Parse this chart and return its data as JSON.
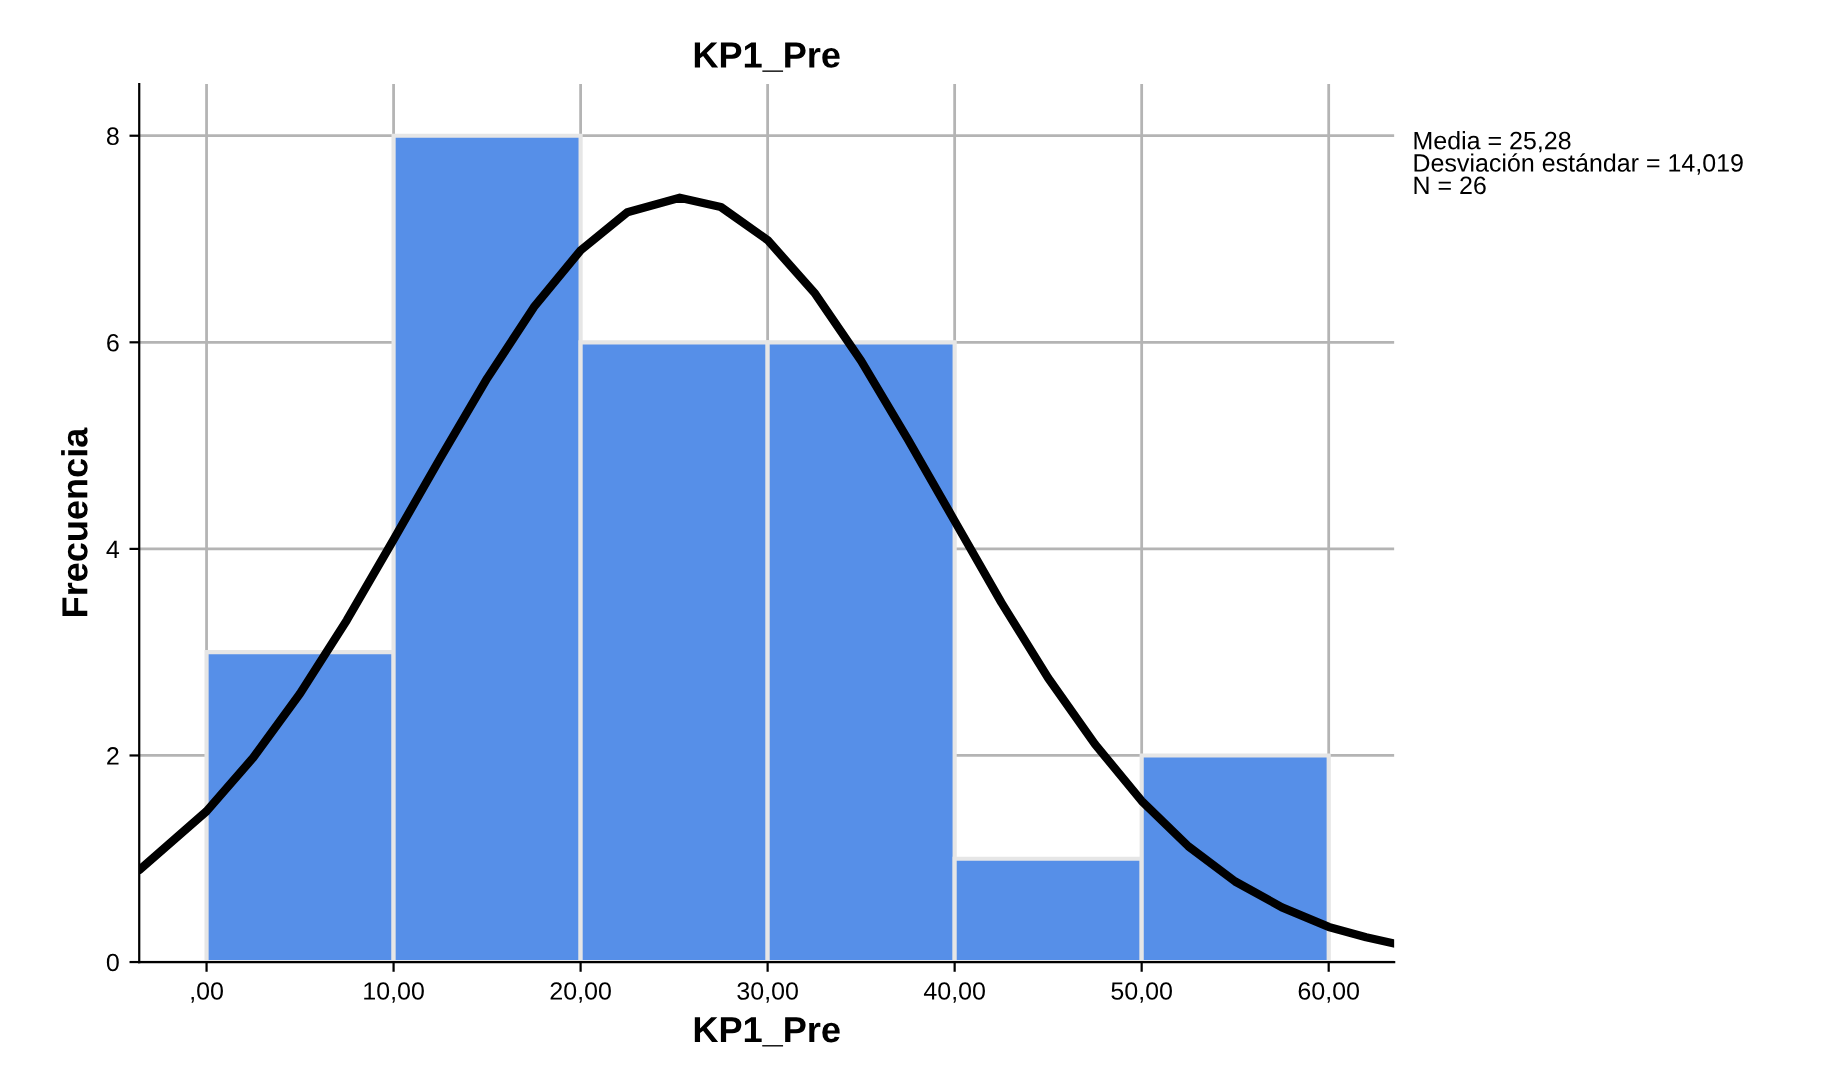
{
  "chart_data": {
    "type": "histogram",
    "title": "KP1_Pre",
    "xlabel": "KP1_Pre",
    "ylabel": "Frecuencia",
    "bins": [
      0,
      10,
      20,
      30,
      40,
      50,
      60
    ],
    "values": [
      3,
      8,
      6,
      6,
      1,
      2
    ],
    "color": "#568fe8",
    "series": [
      {
        "type": "line",
        "color": "#000000",
        "x": [
          -3.6,
          0,
          2.5,
          5,
          7.5,
          10,
          12.5,
          15,
          17.5,
          20,
          22.5,
          25.3,
          27.5,
          30,
          32.5,
          35,
          37.5,
          40,
          42.5,
          45,
          47.5,
          50,
          52.5,
          55,
          57.5,
          60,
          62,
          63.5
        ],
        "values": [
          0.89,
          1.46,
          1.98,
          2.6,
          3.31,
          4.09,
          4.88,
          5.65,
          6.34,
          6.89,
          7.26,
          7.4,
          7.31,
          6.99,
          6.48,
          5.82,
          5.06,
          4.27,
          3.48,
          2.75,
          2.11,
          1.56,
          1.12,
          0.78,
          0.53,
          0.34,
          0.24,
          0.18
        ]
      }
    ],
    "xlim": [
      -3.6,
      63.5
    ],
    "ylim": [
      0,
      8.5
    ],
    "xticks": [
      {
        "value": 0,
        "label": ",00"
      },
      {
        "value": 10,
        "label": "10,00"
      },
      {
        "value": 20,
        "label": "20,00"
      },
      {
        "value": 30,
        "label": "30,00"
      },
      {
        "value": 40,
        "label": "40,00"
      },
      {
        "value": 50,
        "label": "50,00"
      },
      {
        "value": 60,
        "label": "60,00"
      }
    ],
    "yticks": [
      0,
      2,
      4,
      6,
      8
    ],
    "grid": true,
    "annotations": [
      "Media = 25,28\nDesviación estándar = 14,019\nN = 26"
    ]
  }
}
